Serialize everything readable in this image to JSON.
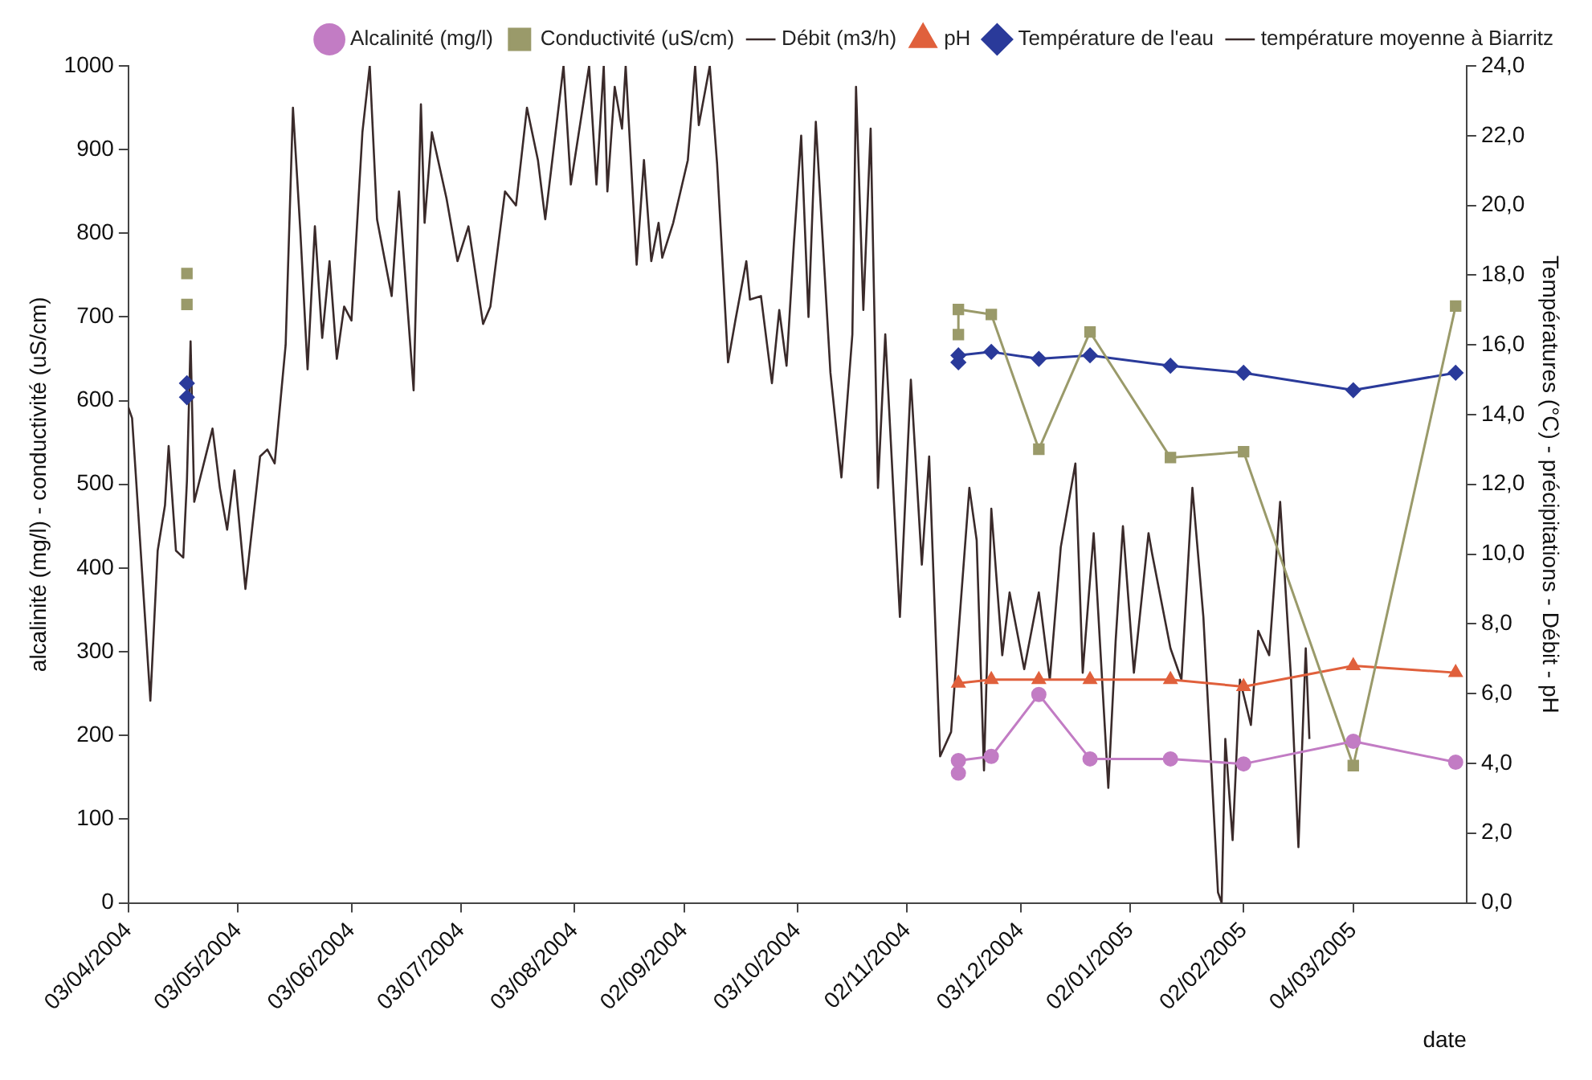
{
  "chart_data": {
    "type": "line",
    "xlabel": "date",
    "ylabel": "alcalinité (mg/l) - conductivité (uS/cm)",
    "y2label": "Températures (°C) - précipitations - Débit - pH",
    "xlim": [
      "2004-04-03",
      "2005-04-04"
    ],
    "xticks": [
      {
        "value": "2004-04-03",
        "label": "03/04/2004"
      },
      {
        "value": "2004-05-03",
        "label": "03/05/2004"
      },
      {
        "value": "2004-06-03",
        "label": "03/06/2004"
      },
      {
        "value": "2004-07-03",
        "label": "03/07/2004"
      },
      {
        "value": "2004-08-03",
        "label": "03/08/2004"
      },
      {
        "value": "2004-09-02",
        "label": "02/09/2004"
      },
      {
        "value": "2004-10-03",
        "label": "03/10/2004"
      },
      {
        "value": "2004-11-02",
        "label": "02/11/2004"
      },
      {
        "value": "2004-12-03",
        "label": "03/12/2004"
      },
      {
        "value": "2005-01-02",
        "label": "02/01/2005"
      },
      {
        "value": "2005-02-02",
        "label": "02/02/2005"
      },
      {
        "value": "2005-03-04",
        "label": "04/03/2005"
      }
    ],
    "ylim": [
      0,
      1000
    ],
    "yticks": [
      0,
      100,
      200,
      300,
      400,
      500,
      600,
      700,
      800,
      900,
      1000
    ],
    "y2lim": [
      0,
      24
    ],
    "y2ticks": [
      {
        "value": 0,
        "label": "0,0"
      },
      {
        "value": 2,
        "label": "2,0"
      },
      {
        "value": 4,
        "label": "4,0"
      },
      {
        "value": 6,
        "label": "6,0"
      },
      {
        "value": 8,
        "label": "8,0"
      },
      {
        "value": 10,
        "label": "10,0"
      },
      {
        "value": 12,
        "label": "12,0"
      },
      {
        "value": 14,
        "label": "14,0"
      },
      {
        "value": 16,
        "label": "16,0"
      },
      {
        "value": 18,
        "label": "18,0"
      },
      {
        "value": 20,
        "label": "20,0"
      },
      {
        "value": 22,
        "label": "22,0"
      },
      {
        "value": 24,
        "label": "24,0"
      }
    ],
    "grid": false,
    "legend": "top right",
    "line_style": "solid",
    "series": [
      {
        "name": "Alcalinité (mg/l)",
        "color": "#c27cc4",
        "marker": "circle",
        "x": [
          "2004-11-16",
          "2004-11-16",
          "2004-11-25",
          "2004-12-08",
          "2004-12-22",
          "2005-01-13",
          "2005-02-02",
          "2005-03-04",
          "2005-04-01"
        ],
        "values": [
          155,
          170,
          175,
          249,
          172,
          172,
          166,
          193,
          168
        ]
      },
      {
        "name": "Conductivité (uS/cm)",
        "color": "#9a9a6a",
        "marker": "square",
        "x": [
          "2004-11-16",
          "2004-11-16",
          "2004-11-25",
          "2004-12-08",
          "2004-12-22",
          "2005-01-13",
          "2005-02-02",
          "2005-03-04",
          "2005-04-01"
        ],
        "values": [
          679,
          709,
          703,
          542,
          682,
          532,
          539,
          164,
          713
        ]
      },
      {
        "name": "Débit (m3/h)",
        "color": "#3a2a2a",
        "axis": "y2"
      },
      {
        "name": "pH",
        "color": "#e0603c",
        "marker": "triangle",
        "axis": "y2",
        "x": [
          "2004-11-16",
          "2004-11-25",
          "2004-12-08",
          "2004-12-22",
          "2005-01-13",
          "2005-02-02",
          "2005-03-04",
          "2005-04-01"
        ],
        "values": [
          6.3,
          6.4,
          6.4,
          6.4,
          6.4,
          6.2,
          6.8,
          6.6
        ]
      },
      {
        "name": "Température de l'eau",
        "color": "#2a3a9a",
        "marker": "diamond",
        "axis": "y2",
        "x": [
          "2004-11-16",
          "2004-11-16",
          "2004-11-25",
          "2004-12-08",
          "2004-12-22",
          "2005-01-13",
          "2005-02-02",
          "2005-03-04",
          "2005-04-01"
        ],
        "values": [
          15.5,
          15.7,
          15.8,
          15.6,
          15.7,
          15.4,
          15.2,
          14.7,
          15.2
        ]
      },
      {
        "type": "scatter",
        "color": "#9a9a6a",
        "marker": "square",
        "x": [
          "2004-04-19",
          "2004-04-19"
        ],
        "values": [
          752,
          715
        ]
      },
      {
        "type": "scatter",
        "color": "#2a3a9a",
        "marker": "diamond",
        "axis": "y2",
        "x": [
          "2004-04-19",
          "2004-04-19"
        ],
        "values": [
          14.9,
          14.5
        ]
      },
      {
        "name": "température moyenne à Biarritz",
        "color": "#3a2a2a",
        "marker": "none",
        "axis": "y2",
        "x": [
          "2004-04-03",
          "2004-04-04",
          "2004-04-05",
          "2004-04-09",
          "2004-04-11",
          "2004-04-13",
          "2004-04-14",
          "2004-04-16",
          "2004-04-18",
          "2004-04-19",
          "2004-04-20",
          "2004-04-21",
          "2004-04-26",
          "2004-04-28",
          "2004-04-30",
          "2004-05-02",
          "2004-05-05",
          "2004-05-09",
          "2004-05-11",
          "2004-05-13",
          "2004-05-16",
          "2004-05-18",
          "2004-05-20",
          "2004-05-22",
          "2004-05-24",
          "2004-05-26",
          "2004-05-28",
          "2004-05-30",
          "2004-06-01",
          "2004-06-03",
          "2004-06-06",
          "2004-06-08",
          "2004-06-10",
          "2004-06-14",
          "2004-06-16",
          "2004-06-20",
          "2004-06-22",
          "2004-06-23",
          "2004-06-25",
          "2004-06-29",
          "2004-07-02",
          "2004-07-05",
          "2004-07-09",
          "2004-07-11",
          "2004-07-15",
          "2004-07-18",
          "2004-07-21",
          "2004-07-24",
          "2004-07-26",
          "2004-07-31",
          "2004-08-02",
          "2004-08-07",
          "2004-08-09",
          "2004-08-11",
          "2004-08-12",
          "2004-08-14",
          "2004-08-16",
          "2004-08-17",
          "2004-08-20",
          "2004-08-22",
          "2004-08-24",
          "2004-08-26",
          "2004-08-27",
          "2004-08-30",
          "2004-09-03",
          "2004-09-05",
          "2004-09-06",
          "2004-09-09",
          "2004-09-11",
          "2004-09-14",
          "2004-09-16",
          "2004-09-19",
          "2004-09-20",
          "2004-09-23",
          "2004-09-26",
          "2004-09-28",
          "2004-09-30",
          "2004-10-02",
          "2004-10-04",
          "2004-10-06",
          "2004-10-08",
          "2004-10-12",
          "2004-10-15",
          "2004-10-18",
          "2004-10-19",
          "2004-10-21",
          "2004-10-23",
          "2004-10-25",
          "2004-10-27",
          "2004-10-31",
          "2004-11-03",
          "2004-11-06",
          "2004-11-08",
          "2004-11-11",
          "2004-11-14",
          "2004-11-16",
          "2004-11-19",
          "2004-11-21",
          "2004-11-23",
          "2004-11-25",
          "2004-11-28",
          "2004-11-30",
          "2004-12-04",
          "2004-12-08",
          "2004-12-11",
          "2004-12-14",
          "2004-12-18",
          "2004-12-20",
          "2004-12-23",
          "2004-12-27",
          "2004-12-29",
          "2004-12-31",
          "2005-01-03",
          "2005-01-07",
          "2005-01-08",
          "2005-01-13",
          "2005-01-16",
          "2005-01-19",
          "2005-01-22",
          "2005-01-26",
          "2005-01-27",
          "2005-01-28",
          "2005-01-30",
          "2005-02-01",
          "2005-02-04",
          "2005-02-06",
          "2005-02-09",
          "2005-02-12",
          "2005-02-15",
          "2005-02-17",
          "2005-02-19",
          "2005-02-20"
        ],
        "values": [
          14.2,
          13.9,
          12.3,
          5.8,
          10.1,
          11.4,
          13.1,
          10.1,
          9.9,
          12.1,
          16.1,
          11.5,
          13.6,
          11.9,
          10.7,
          12.4,
          9.0,
          12.8,
          13.0,
          12.6,
          16.0,
          22.8,
          19.3,
          15.3,
          19.4,
          16.2,
          18.4,
          15.6,
          17.1,
          16.7,
          22.1,
          24.0,
          19.6,
          17.4,
          20.4,
          14.7,
          22.9,
          19.5,
          22.1,
          20.2,
          18.4,
          19.4,
          16.6,
          17.1,
          20.4,
          20.0,
          22.8,
          21.3,
          19.6,
          24.0,
          20.6,
          24.0,
          20.6,
          24.0,
          20.4,
          23.4,
          22.2,
          24.0,
          18.3,
          21.3,
          18.4,
          19.5,
          18.5,
          19.5,
          21.3,
          24.0,
          22.3,
          24.0,
          21.2,
          15.5,
          16.7,
          18.4,
          17.3,
          17.4,
          14.9,
          17.0,
          15.4,
          18.9,
          22.0,
          16.8,
          22.4,
          15.2,
          12.2,
          16.3,
          23.4,
          17.0,
          22.2,
          11.9,
          16.3,
          8.2,
          15.0,
          9.7,
          12.8,
          4.2,
          4.9,
          null,
          11.9,
          10.4,
          3.8,
          11.3,
          7.1,
          8.9,
          6.7,
          8.9,
          6.4,
          10.2,
          12.6,
          6.6,
          10.6,
          3.3,
          7.5,
          10.8,
          6.6,
          10.6,
          10.0,
          7.3,
          6.4,
          11.9,
          8.2,
          0.3,
          0.0,
          4.7,
          1.8,
          6.4,
          5.1,
          7.8,
          7.1,
          11.5,
          6.4,
          1.6,
          7.3,
          4.7
        ]
      }
    ]
  }
}
